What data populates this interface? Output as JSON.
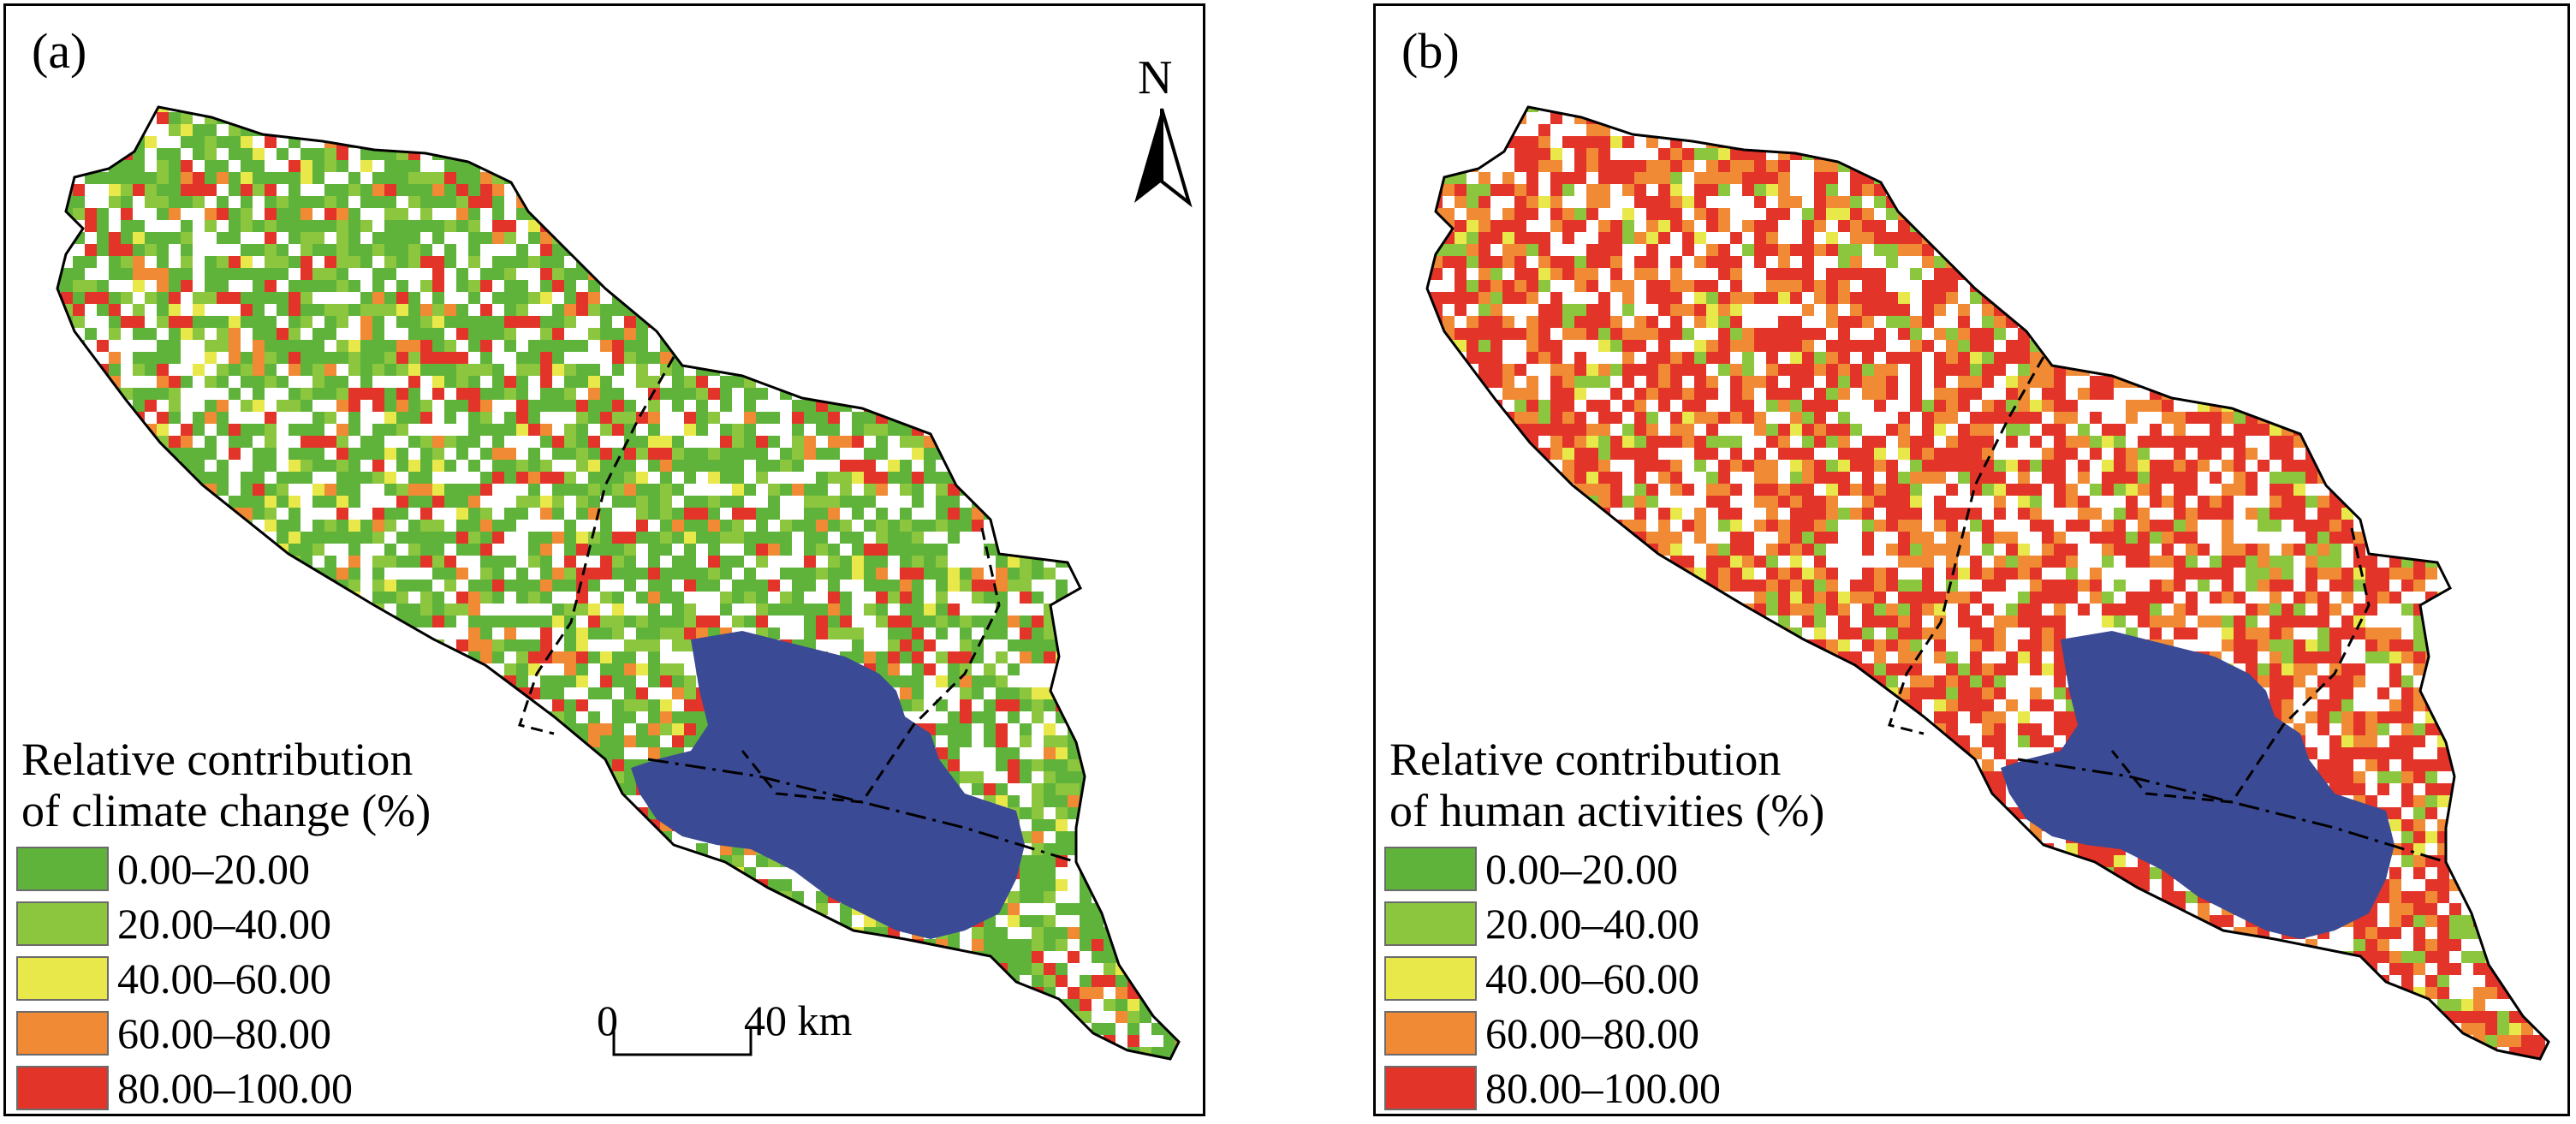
{
  "panels": [
    {
      "label": "(a)",
      "legend_title_line1": "Relative contribution",
      "legend_title_line2": "of climate change (%)",
      "dominant_class": "0.00–20.00"
    },
    {
      "label": "(b)",
      "legend_title_line1": "Relative contribution",
      "legend_title_line2": "of human activities (%)",
      "dominant_class": "80.00–100.00"
    }
  ],
  "legend_classes": [
    {
      "label": "0.00–20.00",
      "color": "#5fb33a"
    },
    {
      "label": "20.00–40.00",
      "color": "#8cc63f"
    },
    {
      "label": "40.00–60.00",
      "color": "#e8e84a"
    },
    {
      "label": "60.00–80.00",
      "color": "#f08a35"
    },
    {
      "label": "80.00–100.00",
      "color": "#e3342a"
    }
  ],
  "lake_color": "#3b4a94",
  "north_arrow": {
    "letter": "N"
  },
  "scale_bar": {
    "start": "0",
    "end": "40 km"
  }
}
